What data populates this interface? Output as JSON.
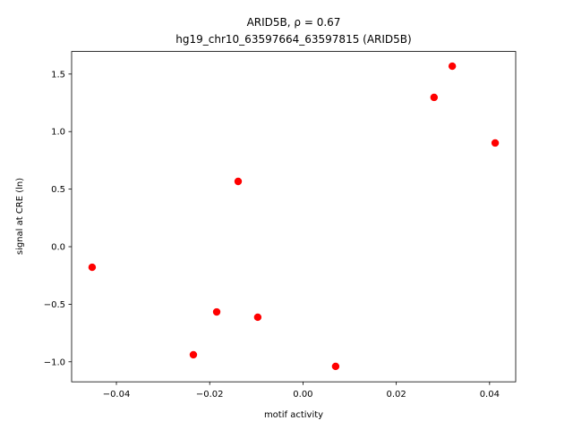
{
  "chart_data": {
    "type": "scatter",
    "title": "ARID5B, ρ = 0.67",
    "subtitle": "hg19_chr10_63597664_63597815 (ARID5B)",
    "x_label": "motif activity",
    "y_label": "signal at CRE (ln)",
    "color": "#ff0000",
    "x": [
      -0.0452,
      -0.0235,
      -0.0185,
      -0.0139,
      -0.0097,
      0.007,
      0.0281,
      0.032,
      0.0412
    ],
    "y": [
      -0.179,
      -0.939,
      -0.567,
      0.567,
      -0.613,
      -1.04,
      1.297,
      1.568,
      0.901
    ],
    "xlim": [
      -0.0496,
      0.0456
    ],
    "ylim": [
      -1.174,
      1.696
    ],
    "xticks": [
      {
        "value": -0.04,
        "label": "−0.04"
      },
      {
        "value": -0.02,
        "label": "−0.02"
      },
      {
        "value": 0,
        "label": "0.00"
      },
      0.02,
      0.04
    ],
    "yticks": [
      {
        "value": -1.0,
        "label": "−1.0"
      },
      {
        "value": -0.5,
        "label": "−0.5"
      },
      {
        "value": 0,
        "label": "0.0"
      },
      0.5,
      {
        "value": 1.0,
        "label": "1.0"
      },
      1.5
    ]
  }
}
